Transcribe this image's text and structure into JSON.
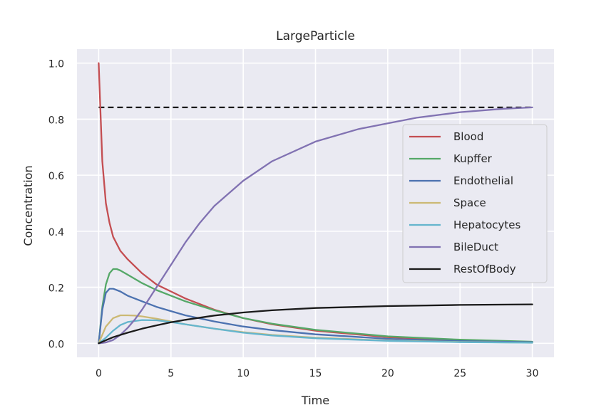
{
  "chart_data": {
    "type": "line",
    "title": "LargeParticle",
    "xlabel": "Time",
    "ylabel": "Concentration",
    "xlim": [
      -1.5,
      31.5
    ],
    "ylim": [
      -0.05,
      1.05
    ],
    "xticks": [
      0,
      5,
      10,
      15,
      20,
      25,
      30
    ],
    "xtick_labels": [
      "0",
      "5",
      "10",
      "15",
      "20",
      "25",
      "30"
    ],
    "yticks": [
      0.0,
      0.2,
      0.4,
      0.6,
      0.8,
      1.0
    ],
    "ytick_labels": [
      "0.0",
      "0.2",
      "0.4",
      "0.6",
      "0.8",
      "1.0"
    ],
    "grid": true,
    "legend_position": "center-right",
    "background_color": "#eaeaf2",
    "series": [
      {
        "name": "Blood",
        "color": "#c44e52",
        "x": [
          0,
          0.25,
          0.5,
          0.75,
          1,
          1.5,
          2,
          3,
          4,
          5,
          6,
          8,
          10,
          12,
          15,
          20,
          25,
          30
        ],
        "y": [
          1.0,
          0.65,
          0.5,
          0.43,
          0.38,
          0.33,
          0.3,
          0.25,
          0.21,
          0.185,
          0.16,
          0.12,
          0.09,
          0.068,
          0.045,
          0.022,
          0.011,
          0.005
        ]
      },
      {
        "name": "Kupffer",
        "color": "#55a868",
        "x": [
          0,
          0.25,
          0.5,
          0.75,
          1,
          1.25,
          1.5,
          2,
          3,
          4,
          5,
          6,
          8,
          10,
          12,
          15,
          20,
          25,
          30
        ],
        "y": [
          0.0,
          0.13,
          0.21,
          0.25,
          0.265,
          0.265,
          0.26,
          0.245,
          0.215,
          0.19,
          0.17,
          0.15,
          0.118,
          0.09,
          0.07,
          0.048,
          0.025,
          0.013,
          0.006
        ]
      },
      {
        "name": "Endothelial",
        "color": "#4c72b0",
        "x": [
          0,
          0.25,
          0.5,
          0.75,
          1,
          1.5,
          2,
          3,
          4,
          5,
          6,
          8,
          10,
          12,
          15,
          20,
          25,
          30
        ],
        "y": [
          0.0,
          0.12,
          0.18,
          0.195,
          0.195,
          0.185,
          0.17,
          0.15,
          0.13,
          0.115,
          0.1,
          0.078,
          0.06,
          0.047,
          0.032,
          0.016,
          0.008,
          0.004
        ]
      },
      {
        "name": "Space",
        "color": "#ccb974",
        "x": [
          0,
          0.5,
          1,
          1.5,
          2,
          2.5,
          3,
          4,
          5,
          6,
          8,
          10,
          12,
          15,
          20,
          25,
          30
        ],
        "y": [
          0.0,
          0.06,
          0.09,
          0.1,
          0.1,
          0.099,
          0.096,
          0.088,
          0.078,
          0.068,
          0.052,
          0.04,
          0.03,
          0.02,
          0.01,
          0.005,
          0.002
        ]
      },
      {
        "name": "Hepatocytes",
        "color": "#64b5cd",
        "x": [
          0,
          0.5,
          1,
          1.5,
          2,
          3,
          4,
          5,
          6,
          8,
          10,
          12,
          15,
          20,
          25,
          30
        ],
        "y": [
          0.0,
          0.02,
          0.045,
          0.065,
          0.076,
          0.083,
          0.082,
          0.076,
          0.068,
          0.052,
          0.038,
          0.028,
          0.018,
          0.009,
          0.004,
          0.002
        ]
      },
      {
        "name": "BileDuct",
        "color": "#8172b2",
        "x": [
          0,
          0.5,
          1,
          1.5,
          2,
          2.5,
          3,
          4,
          5,
          6,
          7,
          8,
          10,
          12,
          15,
          18,
          20,
          22,
          25,
          28,
          30
        ],
        "y": [
          0.0,
          0.003,
          0.012,
          0.03,
          0.055,
          0.085,
          0.12,
          0.2,
          0.28,
          0.36,
          0.43,
          0.49,
          0.58,
          0.65,
          0.72,
          0.765,
          0.785,
          0.805,
          0.825,
          0.837,
          0.842
        ]
      },
      {
        "name": "RestOfBody",
        "color": "#1a1a1a",
        "x": [
          0,
          1,
          2,
          3,
          4,
          5,
          6,
          8,
          10,
          12,
          15,
          20,
          25,
          30
        ],
        "y": [
          0.0,
          0.022,
          0.038,
          0.052,
          0.064,
          0.075,
          0.084,
          0.099,
          0.11,
          0.118,
          0.126,
          0.133,
          0.137,
          0.139
        ]
      }
    ],
    "reference_line": {
      "y": 0.842,
      "x_start": 0,
      "x_end": 30,
      "style": "dashed",
      "color": "#1a1a1a"
    }
  }
}
